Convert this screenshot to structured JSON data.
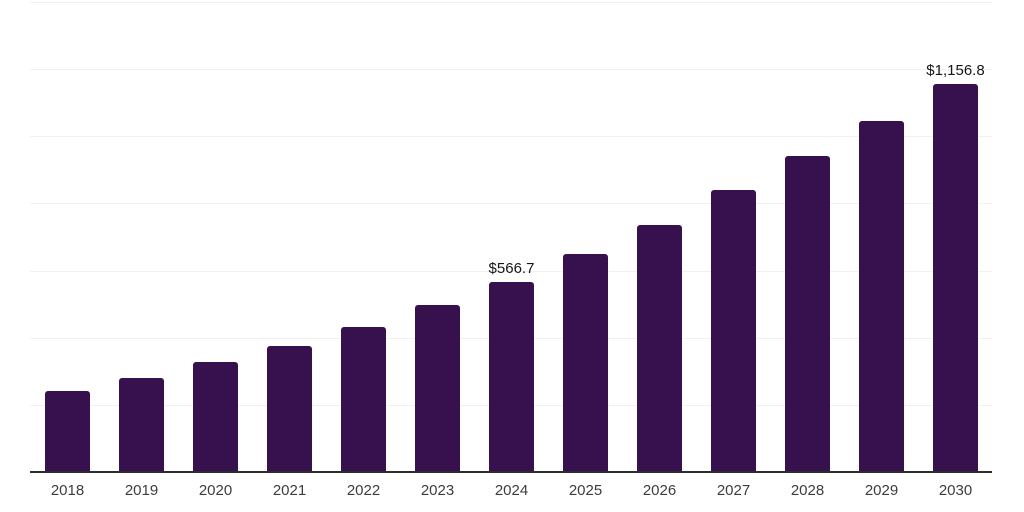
{
  "chart_data": {
    "type": "bar",
    "title": "",
    "xlabel": "",
    "ylabel": "",
    "categories": [
      "2018",
      "2019",
      "2020",
      "2021",
      "2022",
      "2023",
      "2024",
      "2025",
      "2026",
      "2027",
      "2028",
      "2029",
      "2030"
    ],
    "values": [
      240.1,
      278.9,
      326.3,
      376.7,
      433.0,
      498.3,
      566.7,
      649.6,
      737.1,
      838.9,
      939.9,
      1046.8,
      1156.8
    ],
    "value_labels": [
      "",
      "",
      "",
      "",
      "",
      "",
      "$566.7",
      "",
      "",
      "",
      "",
      "",
      "$1,156.8"
    ],
    "ylim": [
      0,
      1400
    ],
    "gridline_step": 200,
    "grid": true,
    "legend": false,
    "colors": {
      "bar": "#36114e",
      "axis": "#2d2d2d",
      "grid": "#f0f0f2",
      "tick_label": "#3d3d3d",
      "value_label": "#161616",
      "background": "#ffffff"
    }
  }
}
